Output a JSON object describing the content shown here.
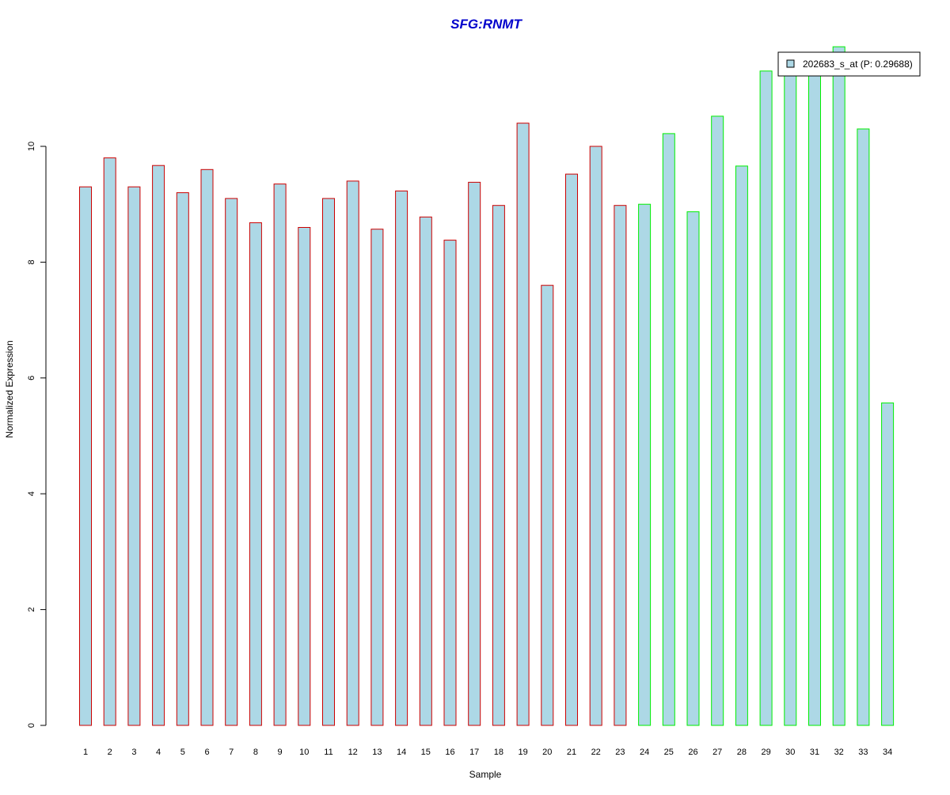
{
  "chart_data": {
    "type": "bar",
    "title": "SFG:RNMT",
    "xlabel": "Sample",
    "ylabel": "Normalized Expression",
    "ylim": [
      0,
      12
    ],
    "yticks": [
      0,
      2,
      4,
      6,
      8,
      10
    ],
    "grid": false,
    "legend_position": "top-right",
    "categories": [
      "1",
      "2",
      "3",
      "4",
      "5",
      "6",
      "7",
      "8",
      "9",
      "10",
      "11",
      "12",
      "13",
      "14",
      "15",
      "16",
      "17",
      "18",
      "19",
      "20",
      "21",
      "22",
      "23",
      "24",
      "25",
      "26",
      "27",
      "28",
      "29",
      "30",
      "31",
      "32",
      "33",
      "34"
    ],
    "series": [
      {
        "name": "202683_s_at (P: 0.29688)",
        "values": [
          9.3,
          9.8,
          9.3,
          9.67,
          9.2,
          9.6,
          9.1,
          8.68,
          9.35,
          8.6,
          9.1,
          9.4,
          8.57,
          9.23,
          8.78,
          8.38,
          9.38,
          8.98,
          10.4,
          7.6,
          9.52,
          10.0,
          8.98,
          9.0,
          10.22,
          8.87,
          10.52,
          9.66,
          11.3,
          11.6,
          11.5,
          11.72,
          10.3,
          5.57
        ]
      }
    ],
    "bar_group_count": 23
  },
  "colors": {
    "title": "#0000cc",
    "bar_fill": "#add8e6",
    "group1_border": "#cc0000",
    "group2_border": "#00ee00",
    "axis": "#000000"
  }
}
